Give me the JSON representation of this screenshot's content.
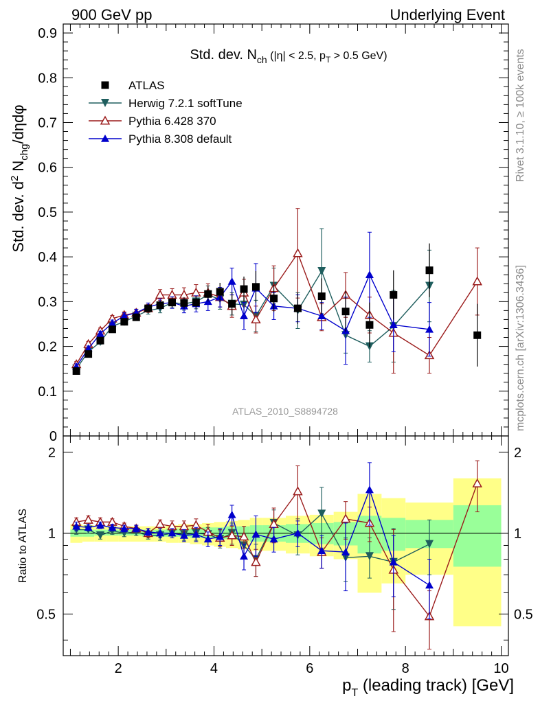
{
  "header": {
    "left": "900 GeV pp",
    "right": "Underlying Event"
  },
  "side_labels": {
    "rivet": "Rivet 3.1.10, ≥ 100k events",
    "mcplots": "mcplots.cern.ch [arXiv:1306.3436]"
  },
  "plot_title": {
    "main": "Std. dev. N",
    "sub_ch": "ch",
    "rest": " (|η| < 2.5, p",
    "sub_t": "T",
    "rest2": " > 0.5 GeV)"
  },
  "ylabel_main": {
    "a": "Std. dev. d",
    "sup": "2",
    "b": " N",
    "sub": "chg",
    "c": "/dηdφ"
  },
  "ylabel_ratio": "Ratio to ATLAS",
  "xlabel": {
    "a": "p",
    "sub": "T",
    "b": " (leading track) [GeV]"
  },
  "watermark": "ATLAS_2010_S8894728",
  "chart_data": {
    "type": "scatter",
    "xlim": [
      0.85,
      10.15
    ],
    "ylim": [
      0,
      0.92
    ],
    "ratio_ylim": [
      0.35,
      2.3
    ],
    "x_ticks": [
      2,
      4,
      6,
      8,
      10
    ],
    "y_ticks": [
      0.1,
      0.2,
      0.3,
      0.4,
      0.5,
      0.6,
      0.7,
      0.8,
      0.9
    ],
    "y_tick_zero": "0",
    "ratio_ticks": [
      0.5,
      1,
      2
    ],
    "legend_position": "top-left",
    "series": [
      {
        "name": "ATLAS",
        "color": "#000000",
        "marker": "square",
        "x": [
          1.125,
          1.375,
          1.625,
          1.875,
          2.125,
          2.375,
          2.625,
          2.875,
          3.125,
          3.375,
          3.625,
          3.875,
          4.125,
          4.375,
          4.625,
          4.875,
          5.25,
          5.75,
          6.25,
          6.75,
          7.25,
          7.75,
          8.5,
          9.5
        ],
        "y": [
          0.145,
          0.183,
          0.213,
          0.238,
          0.255,
          0.265,
          0.285,
          0.292,
          0.298,
          0.297,
          0.298,
          0.317,
          0.322,
          0.295,
          0.328,
          0.333,
          0.307,
          0.285,
          0.312,
          0.278,
          0.248,
          0.315,
          0.37,
          0.225
        ]
      },
      {
        "name": "Herwig 7.2.1 softTune",
        "color": "#1f5e5e",
        "marker": "triangle-down",
        "x": [
          1.125,
          1.375,
          1.625,
          1.875,
          2.125,
          2.375,
          2.625,
          2.875,
          3.125,
          3.375,
          3.625,
          3.875,
          4.125,
          4.375,
          4.625,
          4.875,
          5.25,
          5.75,
          6.25,
          6.75,
          7.25,
          7.75,
          8.5
        ],
        "y": [
          0.15,
          0.188,
          0.21,
          0.245,
          0.255,
          0.268,
          0.28,
          0.285,
          0.298,
          0.295,
          0.3,
          0.315,
          0.305,
          0.295,
          0.293,
          0.268,
          0.335,
          0.28,
          0.368,
          0.225,
          0.2,
          0.245,
          0.335
        ],
        "err": [
          0.005,
          0.005,
          0.005,
          0.006,
          0.006,
          0.007,
          0.008,
          0.01,
          0.012,
          0.014,
          0.016,
          0.02,
          0.022,
          0.025,
          0.03,
          0.035,
          0.04,
          0.04,
          0.095,
          0.04,
          0.035,
          0.08,
          0.08
        ],
        "ratio": [
          1.03,
          1.03,
          0.98,
          1.02,
          1.0,
          1.01,
          0.98,
          0.98,
          1.0,
          0.99,
          1.0,
          0.99,
          0.95,
          1.0,
          0.9,
          0.8,
          1.09,
          0.98,
          1.18,
          0.81,
          0.82,
          0.78,
          0.91
        ],
        "ratio_err": [
          0.04,
          0.03,
          0.03,
          0.03,
          0.03,
          0.03,
          0.03,
          0.04,
          0.04,
          0.05,
          0.06,
          0.06,
          0.07,
          0.09,
          0.09,
          0.11,
          0.13,
          0.15,
          0.3,
          0.15,
          0.14,
          0.26,
          0.21
        ]
      },
      {
        "name": "Pythia 6.428 370",
        "color": "#9b1c1c",
        "marker": "triangle-up-open",
        "x": [
          1.125,
          1.375,
          1.625,
          1.875,
          2.125,
          2.375,
          2.625,
          2.875,
          3.125,
          3.375,
          3.625,
          3.875,
          4.125,
          4.375,
          4.625,
          4.875,
          5.25,
          5.75,
          6.25,
          6.75,
          7.25,
          7.75,
          8.5,
          9.5
        ],
        "y": [
          0.16,
          0.205,
          0.235,
          0.262,
          0.27,
          0.275,
          0.285,
          0.315,
          0.315,
          0.315,
          0.32,
          0.32,
          0.31,
          0.29,
          0.32,
          0.26,
          0.33,
          0.408,
          0.265,
          0.315,
          0.27,
          0.23,
          0.18,
          0.345
        ],
        "err": [
          0.006,
          0.006,
          0.006,
          0.007,
          0.007,
          0.008,
          0.009,
          0.012,
          0.014,
          0.016,
          0.018,
          0.02,
          0.022,
          0.025,
          0.03,
          0.03,
          0.05,
          0.1,
          0.03,
          0.05,
          0.04,
          0.09,
          0.04,
          0.075
        ],
        "ratio": [
          1.1,
          1.12,
          1.1,
          1.1,
          1.06,
          1.04,
          1.0,
          1.08,
          1.06,
          1.06,
          1.07,
          1.01,
          0.96,
          0.98,
          0.97,
          0.78,
          1.08,
          1.43,
          0.85,
          1.13,
          1.09,
          0.73,
          0.49,
          1.53
        ],
        "ratio_err": [
          0.04,
          0.04,
          0.04,
          0.03,
          0.03,
          0.03,
          0.04,
          0.04,
          0.05,
          0.05,
          0.06,
          0.07,
          0.07,
          0.08,
          0.09,
          0.09,
          0.16,
          0.35,
          0.11,
          0.18,
          0.16,
          0.3,
          0.12,
          0.33
        ]
      },
      {
        "name": "Pythia 8.308 default",
        "color": "#0000cc",
        "marker": "triangle-up",
        "x": [
          1.125,
          1.375,
          1.625,
          1.875,
          2.125,
          2.375,
          2.625,
          2.875,
          3.125,
          3.375,
          3.625,
          3.875,
          4.125,
          4.375,
          4.625,
          4.875,
          5.25,
          5.75,
          6.25,
          6.75,
          7.25,
          7.75,
          8.5
        ],
        "y": [
          0.155,
          0.195,
          0.228,
          0.252,
          0.268,
          0.275,
          0.288,
          0.295,
          0.298,
          0.29,
          0.295,
          0.3,
          0.31,
          0.345,
          0.268,
          0.33,
          0.29,
          0.285,
          0.268,
          0.235,
          0.36,
          0.248,
          0.238
        ],
        "err": [
          0.006,
          0.006,
          0.006,
          0.007,
          0.007,
          0.008,
          0.009,
          0.011,
          0.013,
          0.015,
          0.018,
          0.02,
          0.022,
          0.03,
          0.03,
          0.055,
          0.03,
          0.03,
          0.03,
          0.075,
          0.095,
          0.06,
          0.06
        ],
        "ratio": [
          1.06,
          1.05,
          1.07,
          1.05,
          1.04,
          1.04,
          1.01,
          1.0,
          1.0,
          0.98,
          0.99,
          0.95,
          0.97,
          1.17,
          0.82,
          0.99,
          0.95,
          1.0,
          0.86,
          0.85,
          1.45,
          0.78,
          0.64
        ],
        "ratio_err": [
          0.04,
          0.03,
          0.03,
          0.03,
          0.03,
          0.03,
          0.03,
          0.04,
          0.04,
          0.05,
          0.06,
          0.06,
          0.07,
          0.1,
          0.09,
          0.17,
          0.1,
          0.11,
          0.12,
          0.24,
          0.38,
          0.2,
          0.16
        ]
      }
    ],
    "atlas_errors": [
      0.004,
      0.004,
      0.005,
      0.005,
      0.006,
      0.007,
      0.008,
      0.009,
      0.011,
      0.013,
      0.015,
      0.017,
      0.02,
      0.025,
      0.028,
      0.035,
      0.03,
      0.035,
      0.04,
      0.045,
      0.05,
      0.055,
      0.06,
      0.07
    ],
    "bands": {
      "edges": [
        1.0,
        1.25,
        1.5,
        1.75,
        2.0,
        2.25,
        2.5,
        2.75,
        3.0,
        3.25,
        3.5,
        3.75,
        4.0,
        4.25,
        4.5,
        4.75,
        5.0,
        5.5,
        6.0,
        6.5,
        7.0,
        7.5,
        8.0,
        9.0,
        10.0
      ],
      "green": [
        [
          0.97,
          1.03
        ],
        [
          0.97,
          1.03
        ],
        [
          0.98,
          1.03
        ],
        [
          0.98,
          1.03
        ],
        [
          0.98,
          1.03
        ],
        [
          0.98,
          1.03
        ],
        [
          0.97,
          1.03
        ],
        [
          0.97,
          1.03
        ],
        [
          0.97,
          1.04
        ],
        [
          0.97,
          1.04
        ],
        [
          0.96,
          1.04
        ],
        [
          0.96,
          1.05
        ],
        [
          0.95,
          1.05
        ],
        [
          0.95,
          1.06
        ],
        [
          0.94,
          1.06
        ],
        [
          0.93,
          1.07
        ],
        [
          0.93,
          1.07
        ],
        [
          0.92,
          1.08
        ],
        [
          0.91,
          1.09
        ],
        [
          0.9,
          1.1
        ],
        [
          0.84,
          1.16
        ],
        [
          0.86,
          1.14
        ],
        [
          0.88,
          1.12
        ],
        [
          0.75,
          1.27
        ]
      ],
      "yellow": [
        [
          0.92,
          1.08
        ],
        [
          0.93,
          1.07
        ],
        [
          0.93,
          1.06
        ],
        [
          0.93,
          1.06
        ],
        [
          0.93,
          1.06
        ],
        [
          0.93,
          1.06
        ],
        [
          0.93,
          1.06
        ],
        [
          0.93,
          1.06
        ],
        [
          0.92,
          1.07
        ],
        [
          0.92,
          1.08
        ],
        [
          0.91,
          1.08
        ],
        [
          0.9,
          1.09
        ],
        [
          0.89,
          1.1
        ],
        [
          0.88,
          1.11
        ],
        [
          0.87,
          1.12
        ],
        [
          0.86,
          1.14
        ],
        [
          0.86,
          1.14
        ],
        [
          0.84,
          1.16
        ],
        [
          0.82,
          1.17
        ],
        [
          0.8,
          1.2
        ],
        [
          0.6,
          1.4
        ],
        [
          0.65,
          1.35
        ],
        [
          0.7,
          1.3
        ],
        [
          0.45,
          1.6
        ]
      ]
    }
  }
}
